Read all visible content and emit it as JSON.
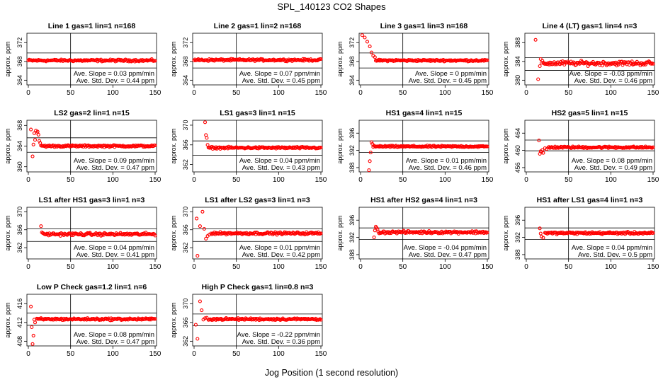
{
  "figure": {
    "title": "SPL_140123  CO2 Shapes",
    "xlabel": "Jog Position (1 second resolution)"
  },
  "colors": {
    "points": "#ff0000",
    "axes": "#000000",
    "background": "#ffffff"
  },
  "chart_data": [
    {
      "type": "scatter",
      "title": "Line 1 gas=1 lin=1 n=168",
      "ylabel": "approx. ppm",
      "xlim": [
        0,
        150
      ],
      "ylim": [
        363,
        374
      ],
      "yticks": [
        364,
        368,
        372
      ],
      "xticks": [
        0,
        50,
        100,
        150
      ],
      "hlines": [
        369.8,
        366.6
      ],
      "vline": 50,
      "transient": [],
      "settle_x": 0,
      "steady_value": 368.2,
      "noise": 0.18,
      "slope_text": "Ave. Slope = 0.03  ppm/min",
      "std_text": "Ave. Std. Dev. = 0.44  ppm"
    },
    {
      "type": "scatter",
      "title": "Line 2 gas=1 lin=2 n=168",
      "ylabel": "approx. ppm",
      "xlim": [
        0,
        150
      ],
      "ylim": [
        363,
        374
      ],
      "yticks": [
        364,
        368,
        372
      ],
      "xticks": [
        0,
        50,
        100,
        150
      ],
      "hlines": [
        369.8,
        366.6
      ],
      "vline": 50,
      "transient": [],
      "settle_x": 0,
      "steady_value": 368.3,
      "noise": 0.18,
      "slope_text": "Ave. Slope = 0.07  ppm/min",
      "std_text": "Ave. Std. Dev. = 0.45  ppm"
    },
    {
      "type": "scatter",
      "title": "Line 3 gas=1 lin=3 n=168",
      "ylabel": "approx. ppm",
      "xlim": [
        0,
        150
      ],
      "ylim": [
        363,
        374
      ],
      "yticks": [
        364,
        368,
        372
      ],
      "xticks": [
        0,
        50,
        100,
        150
      ],
      "hlines": [
        369.8,
        366.6
      ],
      "vline": 50,
      "transient": [
        [
          2,
          373.6
        ],
        [
          5,
          373.1
        ],
        [
          8,
          372.2
        ],
        [
          11,
          371.2
        ],
        [
          13,
          369.9
        ],
        [
          15,
          369.2
        ],
        [
          17,
          368.9
        ]
      ],
      "settle_x": 18,
      "steady_value": 368.2,
      "noise": 0.15,
      "slope_text": "Ave. Slope = 0  ppm/min",
      "std_text": "Ave. Std. Dev. = 0.45  ppm"
    },
    {
      "type": "scatter",
      "title": "Line 4 (LT) gas=1 lin=4 n=3",
      "ylabel": "approx. ppm",
      "xlim": [
        0,
        150
      ],
      "ylim": [
        379,
        390
      ],
      "yticks": [
        380,
        384,
        388
      ],
      "xticks": [
        0,
        50,
        100,
        150
      ],
      "hlines": [
        384.8,
        382.1
      ],
      "vline": 50,
      "transient": [
        [
          11,
          388.6
        ],
        [
          14,
          380.2
        ],
        [
          16,
          383.0
        ],
        [
          17,
          384.5
        ]
      ],
      "settle_x": 18,
      "steady_value": 383.6,
      "noise": 0.4,
      "slope_text": "Ave. Slope = -0.03  ppm/min",
      "std_text": "Ave. Std. Dev. = 0.46  ppm"
    },
    {
      "type": "scatter",
      "title": "LS2 gas=2 lin=1 n=15",
      "ylabel": "approx. ppm",
      "xlim": [
        0,
        150
      ],
      "ylim": [
        359,
        369
      ],
      "yticks": [
        360,
        364,
        368
      ],
      "xticks": [
        0,
        50,
        100,
        150
      ],
      "hlines": [
        365.6,
        362.8
      ],
      "vline": 50,
      "transient": [
        [
          3,
          367.2
        ],
        [
          5,
          362.0
        ],
        [
          6,
          364.3
        ],
        [
          7,
          366.5
        ],
        [
          8,
          365.2
        ],
        [
          9,
          367.0
        ],
        [
          10,
          366.6
        ],
        [
          11,
          366.8
        ],
        [
          12,
          366.2
        ],
        [
          13,
          365.0
        ],
        [
          14,
          364.6
        ],
        [
          15,
          364.1
        ]
      ],
      "settle_x": 16,
      "steady_value": 364.0,
      "noise": 0.16,
      "slope_text": "Ave. Slope = 0.09  ppm/min",
      "std_text": "Ave. Std. Dev. = 0.47  ppm"
    },
    {
      "type": "scatter",
      "title": "LS1 gas=3 lin=1 n=15",
      "ylabel": "approx. ppm",
      "xlim": [
        0,
        150
      ],
      "ylim": [
        360.5,
        371
      ],
      "yticks": [
        362,
        366,
        370
      ],
      "xticks": [
        0,
        50,
        100,
        150
      ],
      "hlines": [
        366.8,
        363.9
      ],
      "vline": 50,
      "transient": [
        [
          13,
          370.6
        ],
        [
          14,
          368.0
        ],
        [
          15,
          367.4
        ],
        [
          16,
          366.0
        ]
      ],
      "settle_x": 17,
      "steady_value": 365.4,
      "noise": 0.16,
      "slope_text": "Ave. Slope = 0.04  ppm/min",
      "std_text": "Ave. Std. Dev. = 0.43  ppm"
    },
    {
      "type": "scatter",
      "title": "HS1 gas=4 lin=1 n=15",
      "ylabel": "approx. ppm",
      "xlim": [
        0,
        150
      ],
      "ylim": [
        387,
        399
      ],
      "yticks": [
        388,
        392,
        396
      ],
      "xticks": [
        0,
        50,
        100,
        150
      ],
      "hlines": [
        394.2,
        391.5
      ],
      "vline": 50,
      "transient": [
        [
          10,
          387.4
        ],
        [
          11,
          389.5
        ],
        [
          12,
          391.5
        ],
        [
          13,
          393.9
        ],
        [
          14,
          393.5
        ],
        [
          15,
          392.8
        ]
      ],
      "settle_x": 16,
      "steady_value": 392.9,
      "noise": 0.16,
      "slope_text": "Ave. Slope = 0.01  ppm/min",
      "std_text": "Ave. Std. Dev. = 0.46  ppm"
    },
    {
      "type": "scatter",
      "title": "HS2 gas=5 lin=1 n=15",
      "ylabel": "approx. ppm",
      "xlim": [
        0,
        150
      ],
      "ylim": [
        455,
        467
      ],
      "yticks": [
        456,
        460,
        464
      ],
      "xticks": [
        0,
        50,
        100,
        150
      ],
      "hlines": [
        462.4,
        459.9
      ],
      "vline": 50,
      "transient": [
        [
          15,
          462.3
        ],
        [
          16,
          459.2
        ],
        [
          17,
          459.8
        ],
        [
          18,
          459.6
        ],
        [
          19,
          460.1
        ],
        [
          20,
          459.4
        ],
        [
          22,
          460.5
        ],
        [
          24,
          460.3
        ]
      ],
      "settle_x": 26,
      "steady_value": 460.7,
      "noise": 0.18,
      "slope_text": "Ave. Slope = 0.08  ppm/min",
      "std_text": "Ave. Std. Dev. = 0.49  ppm"
    },
    {
      "type": "scatter",
      "title": "LS1 after HS1 gas=3 lin=1 n=3",
      "ylabel": "approx. ppm",
      "xlim": [
        0,
        150
      ],
      "ylim": [
        359.5,
        371
      ],
      "yticks": [
        362,
        366,
        370
      ],
      "xticks": [
        0,
        50,
        100,
        150
      ],
      "hlines": [
        366.2,
        363.4
      ],
      "vline": 50,
      "transient": [
        [
          15,
          366.8
        ],
        [
          16,
          365.4
        ]
      ],
      "settle_x": 17,
      "steady_value": 365.0,
      "noise": 0.25,
      "slope_text": "Ave. Slope = 0.04  ppm/min",
      "std_text": "Ave. Std. Dev. = 0.41  ppm"
    },
    {
      "type": "scatter",
      "title": "LS1 after LS2 gas=3 lin=1 n=3",
      "ylabel": "approx. ppm",
      "xlim": [
        0,
        150
      ],
      "ylim": [
        359.5,
        371
      ],
      "yticks": [
        362,
        366,
        370
      ],
      "xticks": [
        0,
        50,
        100,
        150
      ],
      "hlines": [
        366.2,
        363.4
      ],
      "vline": 50,
      "transient": [
        [
          3,
          368.5
        ],
        [
          4,
          360.2
        ],
        [
          7,
          366.8
        ],
        [
          10,
          370.0
        ],
        [
          12,
          366.2
        ],
        [
          14,
          364.0
        ],
        [
          16,
          364.6
        ],
        [
          18,
          364.9
        ]
      ],
      "settle_x": 20,
      "steady_value": 365.2,
      "noise": 0.22,
      "slope_text": "Ave. Slope = 0.01  ppm/min",
      "std_text": "Ave. Std. Dev. = 0.42  ppm"
    },
    {
      "type": "scatter",
      "title": "HS1 after HS2 gas=4 lin=1 n=3",
      "ylabel": "approx. ppm",
      "xlim": [
        0,
        150
      ],
      "ylim": [
        387,
        399
      ],
      "yticks": [
        388,
        392,
        396
      ],
      "xticks": [
        0,
        50,
        100,
        150
      ],
      "hlines": [
        394.2,
        391.5
      ],
      "vline": 50,
      "transient": [
        [
          16,
          392.0
        ],
        [
          17,
          393.6
        ],
        [
          18,
          394.5
        ],
        [
          19,
          394.2
        ],
        [
          20,
          393.9
        ]
      ],
      "settle_x": 21,
      "steady_value": 393.2,
      "noise": 0.25,
      "slope_text": "Ave. Slope = -0.04  ppm/min",
      "std_text": "Ave. Std. Dev. = 0.47  ppm"
    },
    {
      "type": "scatter",
      "title": "HS1 after LS1 gas=4 lin=1 n=3",
      "ylabel": "approx. ppm",
      "xlim": [
        0,
        150
      ],
      "ylim": [
        387,
        399
      ],
      "yticks": [
        388,
        392,
        396
      ],
      "xticks": [
        0,
        50,
        100,
        150
      ],
      "hlines": [
        394.2,
        391.5
      ],
      "vline": 50,
      "transient": [
        [
          16,
          394.1
        ],
        [
          17,
          392.9
        ],
        [
          18,
          392.2
        ],
        [
          20,
          391.9
        ]
      ],
      "settle_x": 22,
      "steady_value": 393.0,
      "noise": 0.22,
      "slope_text": "Ave. Slope = 0.04  ppm/min",
      "std_text": "Ave. Std. Dev. = 0.5  ppm"
    },
    {
      "type": "scatter",
      "title": "Low P Check gas=1.2 lin=1 n=6",
      "ylabel": "approx. ppm",
      "xlim": [
        0,
        150
      ],
      "ylim": [
        407,
        418
      ],
      "yticks": [
        408,
        412,
        416
      ],
      "xticks": [
        0,
        50,
        100,
        150
      ],
      "hlines": [
        414.0,
        411.4
      ],
      "vline": 50,
      "transient": [
        [
          3,
          415.4
        ],
        [
          4,
          411.0
        ],
        [
          5,
          407.4
        ],
        [
          6,
          409.2
        ],
        [
          7,
          412.6
        ],
        [
          8,
          412.0
        ]
      ],
      "settle_x": 10,
      "steady_value": 412.7,
      "noise": 0.18,
      "slope_text": "Ave. Slope = 0.08  ppm/min",
      "std_text": "Ave. Std. Dev. = 0.47  ppm"
    },
    {
      "type": "scatter",
      "title": "High P Check gas=1 lin=0.8 n=3",
      "ylabel": "approx. ppm",
      "xlim": [
        0,
        150
      ],
      "ylim": [
        361,
        372
      ],
      "yticks": [
        362,
        366,
        370
      ],
      "xticks": [
        0,
        50,
        100,
        150
      ],
      "hlines": [
        367.8,
        365.3
      ],
      "vline": 50,
      "transient": [
        [
          2,
          365.5
        ],
        [
          4,
          362.5
        ],
        [
          7,
          370.5
        ],
        [
          9,
          368.6
        ],
        [
          11,
          366.6
        ],
        [
          13,
          366.9
        ],
        [
          15,
          367.0
        ]
      ],
      "settle_x": 17,
      "steady_value": 366.7,
      "noise": 0.18,
      "slope_text": "Ave. Slope = -0.22  ppm/min",
      "std_text": "Ave. Std. Dev. = 0.36  ppm"
    }
  ]
}
